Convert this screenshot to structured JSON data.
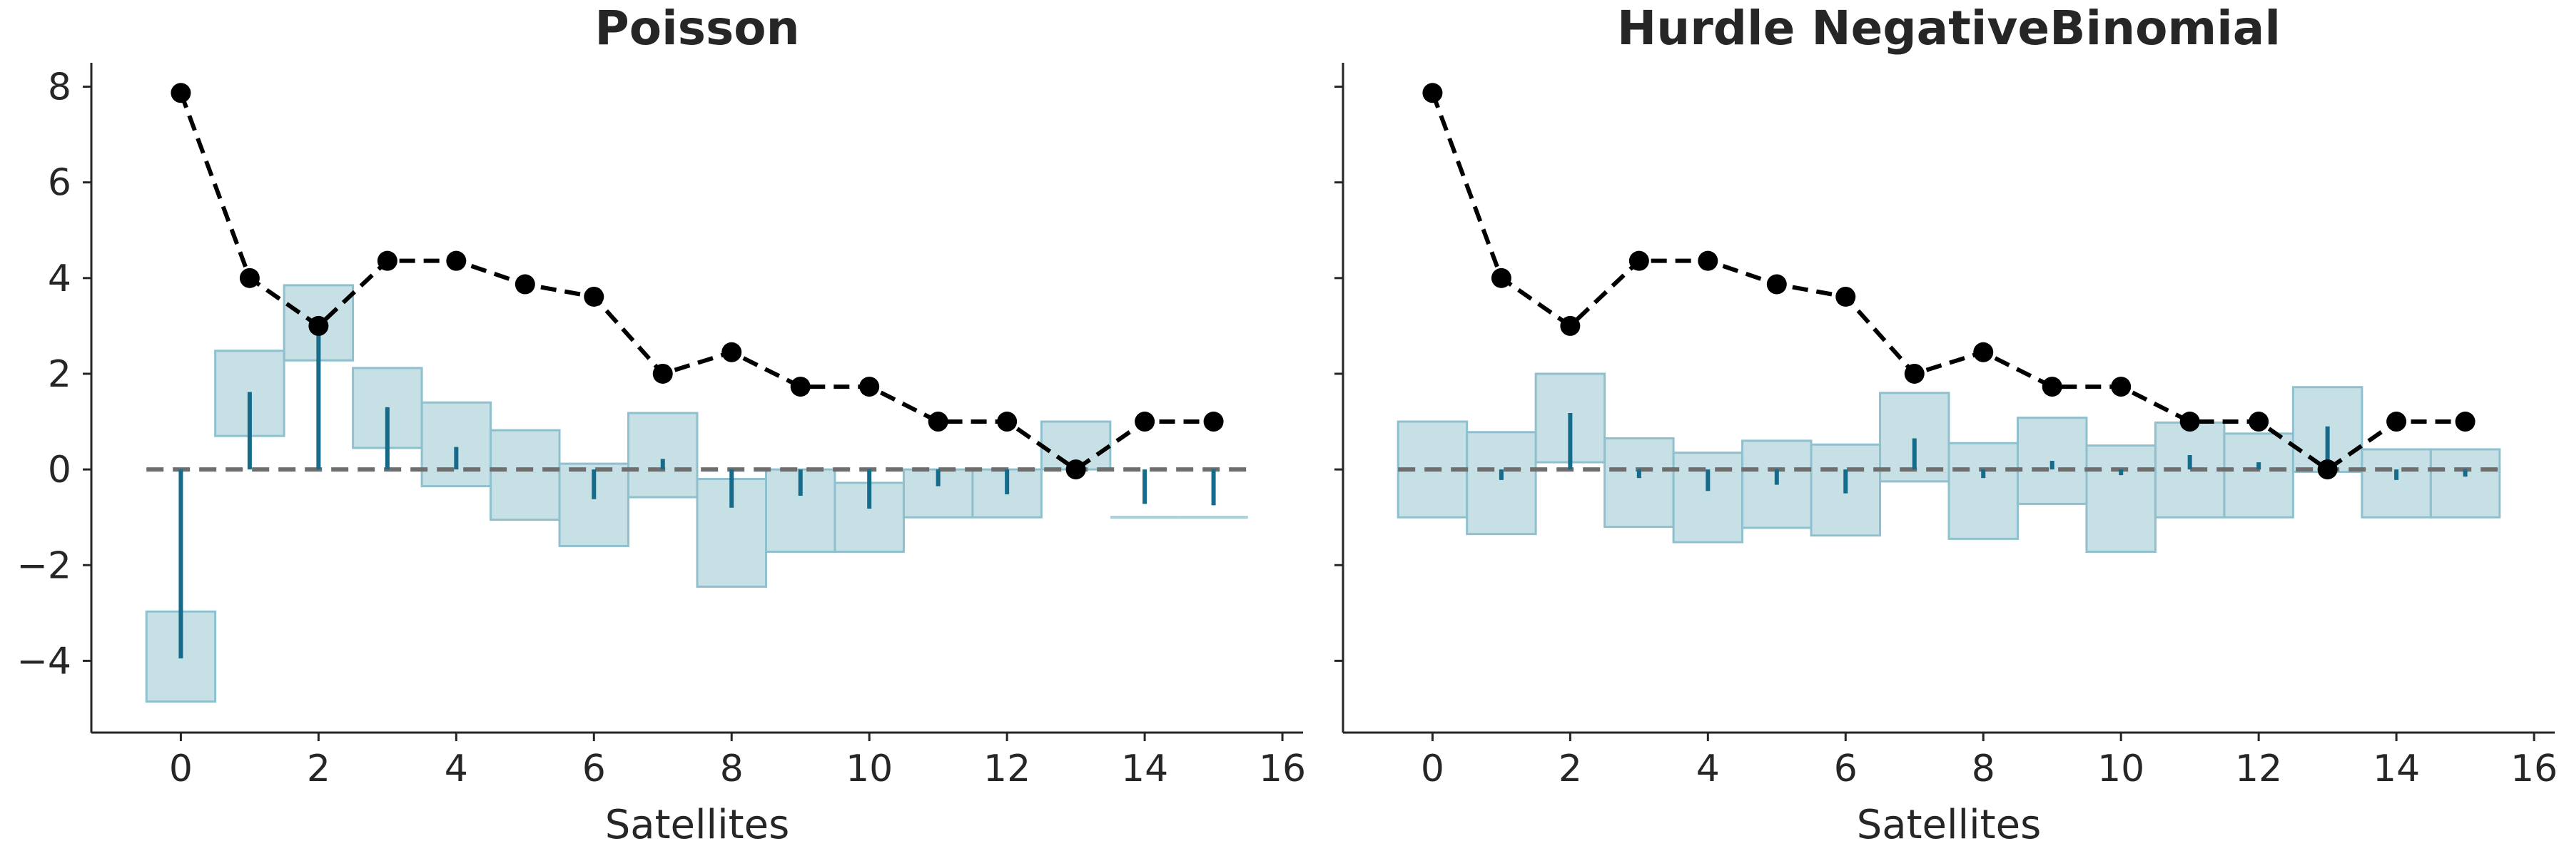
{
  "colors": {
    "band_fill": "#a9cfd9",
    "stem": "#156b89",
    "observed": "#000000",
    "reference_line": "#6e6e6e"
  },
  "chart_data": [
    {
      "type": "rootogram",
      "title": "Poisson",
      "xlabel": "Satellites",
      "ylabel": "",
      "xlim": [
        -1.3,
        16.3
      ],
      "ylim": [
        -5.5,
        8.5
      ],
      "xticks": [
        0,
        2,
        4,
        6,
        8,
        10,
        12,
        14,
        16
      ],
      "yticks": [
        -4,
        -2,
        0,
        2,
        4,
        6,
        8
      ],
      "grid": false,
      "legend": "none",
      "x": [
        0,
        1,
        2,
        3,
        4,
        5,
        6,
        7,
        8,
        9,
        10,
        11,
        12,
        13,
        14,
        15
      ],
      "observed": [
        7.87,
        4.0,
        3.0,
        4.36,
        4.36,
        3.87,
        3.61,
        2.0,
        2.45,
        1.73,
        1.73,
        1.0,
        1.0,
        0.0,
        1.0,
        1.0
      ],
      "band_lower": [
        -4.85,
        0.7,
        2.28,
        0.45,
        -0.35,
        -1.05,
        -1.6,
        -0.58,
        -2.45,
        -1.72,
        -1.72,
        -1.0,
        -1.0,
        0.0,
        -1.0,
        -1.0
      ],
      "band_upper": [
        -2.97,
        2.48,
        3.85,
        2.12,
        1.4,
        0.82,
        0.12,
        1.18,
        -0.2,
        0.0,
        -0.28,
        0.0,
        0.0,
        1.0,
        -1.0,
        -1.0
      ],
      "residual": [
        -3.95,
        1.62,
        2.95,
        1.3,
        0.47,
        0.0,
        -0.62,
        0.22,
        -0.8,
        -0.55,
        -0.82,
        -0.35,
        -0.52,
        0.0,
        -0.72,
        -0.75
      ]
    },
    {
      "type": "rootogram",
      "title": "Hurdle NegativeBinomial",
      "xlabel": "Satellites",
      "ylabel": "",
      "xlim": [
        -1.3,
        16.3
      ],
      "ylim": [
        -5.5,
        8.5
      ],
      "xticks": [
        0,
        2,
        4,
        6,
        8,
        10,
        12,
        14,
        16
      ],
      "yticks": [
        -4,
        -2,
        0,
        2,
        4,
        6,
        8
      ],
      "grid": false,
      "legend": "none",
      "x": [
        0,
        1,
        2,
        3,
        4,
        5,
        6,
        7,
        8,
        9,
        10,
        11,
        12,
        13,
        14,
        15
      ],
      "observed": [
        7.87,
        4.0,
        3.0,
        4.36,
        4.36,
        3.87,
        3.61,
        2.0,
        2.45,
        1.73,
        1.73,
        1.0,
        1.0,
        0.0,
        1.0,
        1.0
      ],
      "band_lower": [
        -1.0,
        -1.35,
        0.15,
        -1.2,
        -1.52,
        -1.22,
        -1.38,
        -0.25,
        -1.45,
        -0.72,
        -1.72,
        -1.0,
        -1.0,
        -0.05,
        -1.0,
        -1.0
      ],
      "band_upper": [
        1.0,
        0.78,
        2.0,
        0.65,
        0.35,
        0.6,
        0.52,
        1.6,
        0.55,
        1.08,
        0.5,
        0.98,
        0.75,
        1.72,
        0.42,
        0.42
      ],
      "residual": [
        0.0,
        -0.22,
        1.18,
        -0.18,
        -0.45,
        -0.32,
        -0.5,
        0.65,
        -0.18,
        0.18,
        -0.12,
        0.3,
        0.15,
        0.9,
        -0.22,
        -0.15
      ]
    }
  ]
}
